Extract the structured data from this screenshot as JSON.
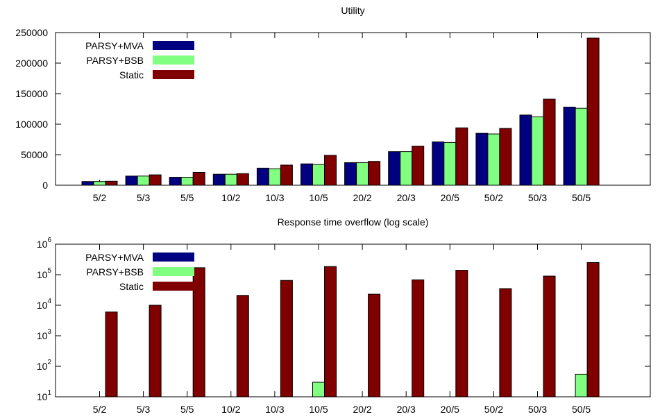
{
  "chart_data": [
    {
      "type": "bar",
      "title": "Utility",
      "xlabel": "",
      "ylabel": "",
      "categories": [
        "5/2",
        "5/3",
        "5/5",
        "10/2",
        "10/3",
        "10/5",
        "20/2",
        "20/3",
        "20/5",
        "50/2",
        "50/3",
        "50/5"
      ],
      "ylim": [
        0,
        250000
      ],
      "yscale": "linear",
      "yticks": [
        "0",
        "50000",
        "100000",
        "150000",
        "200000",
        "250000"
      ],
      "legend_position": "top-left",
      "grid": false,
      "series": [
        {
          "name": "PARSY+MVA",
          "color": "#000080",
          "values": [
            6000,
            15000,
            13000,
            18000,
            28000,
            35000,
            37000,
            55000,
            71000,
            85000,
            115000,
            128000
          ]
        },
        {
          "name": "PARSY+BSB",
          "color": "#80ff80",
          "values": [
            6000,
            15000,
            13000,
            18000,
            27000,
            34000,
            37000,
            55000,
            70000,
            84000,
            112000,
            126000
          ]
        },
        {
          "name": "Static",
          "color": "#800000",
          "values": [
            6500,
            17000,
            21000,
            19000,
            33000,
            49000,
            39000,
            64000,
            94000,
            93000,
            141000,
            241000
          ]
        }
      ]
    },
    {
      "type": "bar",
      "title": "Response time overflow (log scale)",
      "xlabel": "",
      "ylabel": "",
      "categories": [
        "5/2",
        "5/3",
        "5/5",
        "10/2",
        "10/3",
        "10/5",
        "20/2",
        "20/3",
        "20/5",
        "50/2",
        "50/3",
        "50/5"
      ],
      "ylim": [
        10,
        1000000
      ],
      "yscale": "log",
      "ytick_exponents": [
        "1",
        "2",
        "3",
        "4",
        "5",
        "6"
      ],
      "ytick_base": "10",
      "legend_position": "top-left",
      "grid": false,
      "series": [
        {
          "name": "PARSY+MVA",
          "color": "#000080",
          "values": [
            0,
            0,
            0,
            0,
            0,
            0,
            0,
            0,
            0,
            0,
            0,
            0
          ]
        },
        {
          "name": "PARSY+BSB",
          "color": "#80ff80",
          "values": [
            0,
            0,
            0,
            0,
            0,
            30,
            0,
            0,
            0,
            0,
            0,
            55
          ]
        },
        {
          "name": "Static",
          "color": "#800000",
          "values": [
            6000,
            10000,
            170000,
            21000,
            65000,
            185000,
            23000,
            68000,
            140000,
            35000,
            90000,
            250000
          ]
        }
      ]
    }
  ]
}
